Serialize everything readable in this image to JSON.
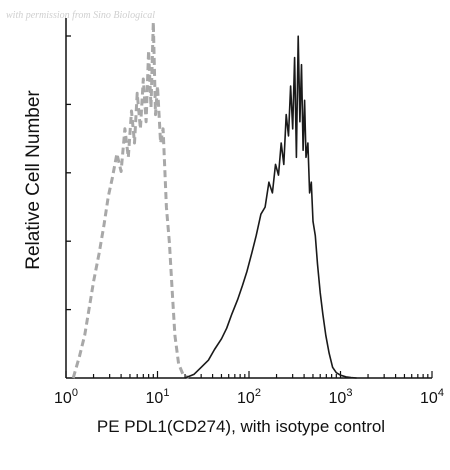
{
  "watermark": "with permission from Sino Biological",
  "chart_data": {
    "type": "area",
    "title": "",
    "xlabel": "PE PDL1(CD274), with isotype control",
    "ylabel": "Relative Cell Number",
    "xscale": "log",
    "xlim": [
      1,
      10000
    ],
    "ylim": [
      0,
      100
    ],
    "grid": false,
    "x_tick_labels": [
      {
        "base": "10",
        "exp": "0"
      },
      {
        "base": "10",
        "exp": "1"
      },
      {
        "base": "10",
        "exp": "2"
      },
      {
        "base": "10",
        "exp": "3"
      },
      {
        "base": "10",
        "exp": "4"
      }
    ],
    "series": [
      {
        "style": "dashed",
        "color": "#a8a8a8",
        "x": [
          1.2,
          1.4,
          1.6,
          1.8,
          2.0,
          2.3,
          2.6,
          2.9,
          3.2,
          3.6,
          4.0,
          4.4,
          4.8,
          5.2,
          5.6,
          6.0,
          6.5,
          7.0,
          7.5,
          8.0,
          8.5,
          9.0,
          9.5,
          10.0,
          10.8,
          11.5,
          12.5,
          13.5,
          14.5,
          15.5,
          17.0,
          19.0,
          22.0
        ],
        "y": [
          0,
          6,
          12,
          20,
          27,
          35,
          43,
          51,
          56,
          63,
          58,
          70,
          62,
          75,
          66,
          80,
          70,
          84,
          72,
          92,
          76,
          100,
          74,
          82,
          66,
          70,
          48,
          38,
          24,
          12,
          4,
          1,
          0
        ]
      },
      {
        "style": "solid",
        "color": "#1a1a1a",
        "x": [
          20,
          25,
          30,
          36,
          42,
          50,
          57,
          65,
          75,
          85,
          95,
          107,
          120,
          135,
          150,
          165,
          180,
          195,
          210,
          225,
          240,
          255,
          270,
          285,
          300,
          315,
          330,
          345,
          360,
          375,
          390,
          405,
          420,
          440,
          460,
          480,
          500,
          530,
          560,
          600,
          640,
          690,
          750,
          820,
          900,
          1000,
          1150,
          1300,
          1500
        ],
        "y": [
          0,
          1,
          3,
          5,
          8,
          11,
          14,
          18,
          22,
          26,
          30,
          35,
          40,
          46,
          48,
          55,
          52,
          60,
          57,
          66,
          60,
          74,
          68,
          82,
          70,
          90,
          62,
          96,
          72,
          88,
          64,
          78,
          62,
          66,
          52,
          55,
          44,
          40,
          32,
          24,
          18,
          12,
          7,
          3,
          1.5,
          0.8,
          0.3,
          0.1,
          0
        ]
      }
    ]
  }
}
